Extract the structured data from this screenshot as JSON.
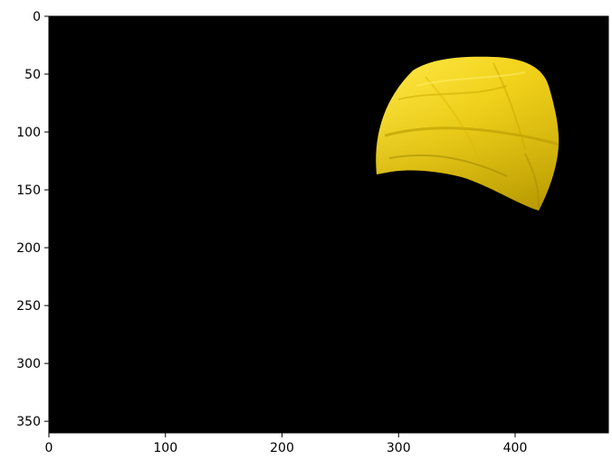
{
  "image": {
    "description_colors": {
      "background": "#000000",
      "object": "#f2d21a",
      "object_shadow": "#c9a800",
      "object_highlight": "#ffe94a"
    }
  },
  "x_axis": {
    "range": [
      0,
      480
    ],
    "ticks": [
      {
        "value": 0,
        "label": "0"
      },
      {
        "value": 100,
        "label": "100"
      },
      {
        "value": 200,
        "label": "200"
      },
      {
        "value": 300,
        "label": "300"
      },
      {
        "value": 400,
        "label": "400"
      }
    ]
  },
  "y_axis": {
    "range": [
      0,
      360
    ],
    "inverted": true,
    "ticks": [
      {
        "value": 0,
        "label": "0"
      },
      {
        "value": 50,
        "label": "50"
      },
      {
        "value": 100,
        "label": "100"
      },
      {
        "value": 150,
        "label": "150"
      },
      {
        "value": 200,
        "label": "200"
      },
      {
        "value": 250,
        "label": "250"
      },
      {
        "value": 300,
        "label": "300"
      },
      {
        "value": 350,
        "label": "350"
      }
    ]
  }
}
